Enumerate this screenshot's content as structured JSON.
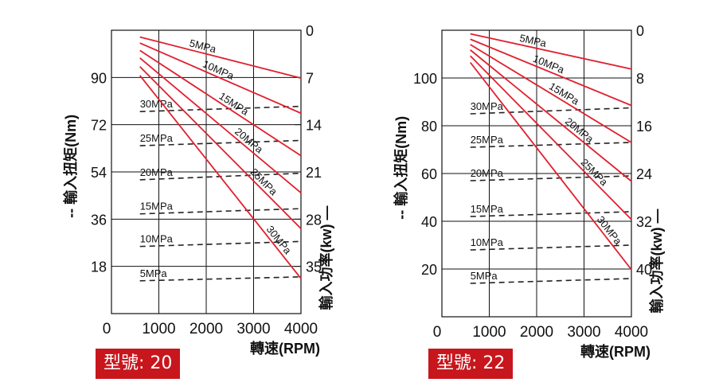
{
  "colors": {
    "power": "#e0202e",
    "torque": "#222222",
    "grid": "#111111",
    "badge": "#c8161d",
    "badge_text": "#ffffff"
  },
  "charts": [
    {
      "model_label": "型號",
      "model_value": "20",
      "xlabel": "轉速(RPM)",
      "ylabel_left": "-- 輸入扭矩(Nm)",
      "ylabel_right": "輸入功率(kw) —",
      "x_ticks": [
        "0",
        "1000",
        "2000",
        "3000",
        "4000"
      ],
      "left_ticks": [
        "90",
        "72",
        "54",
        "36",
        "18"
      ],
      "right_ticks": [
        "0",
        "7",
        "14",
        "21",
        "28",
        "35"
      ],
      "chart_data": {
        "type": "line",
        "x_range": [
          0,
          4000
        ],
        "torque_ylim": [
          0,
          108
        ],
        "power_ylim_inverted": [
          0,
          42
        ],
        "power_series": [
          {
            "name": "5MPa",
            "points": [
              [
                600,
                1
              ],
              [
                4000,
                7.1
              ]
            ]
          },
          {
            "name": "10MPa",
            "points": [
              [
                600,
                1.9
              ],
              [
                4000,
                12.3
              ]
            ]
          },
          {
            "name": "15MPa",
            "points": [
              [
                600,
                3
              ],
              [
                4000,
                18.6
              ]
            ]
          },
          {
            "name": "20MPa",
            "points": [
              [
                600,
                4.1
              ],
              [
                4000,
                24.1
              ]
            ]
          },
          {
            "name": "25MPa",
            "points": [
              [
                600,
                5.4
              ],
              [
                4000,
                29.4
              ]
            ]
          },
          {
            "name": "30MPa",
            "points": [
              [
                600,
                6.7
              ],
              [
                4000,
                36.8
              ]
            ]
          }
        ],
        "torque_series": [
          {
            "name": "30MPa",
            "points": [
              [
                600,
                77
              ],
              [
                4000,
                79
              ]
            ]
          },
          {
            "name": "25MPa",
            "points": [
              [
                600,
                64
              ],
              [
                4000,
                66
              ]
            ]
          },
          {
            "name": "20MPa",
            "points": [
              [
                600,
                51
              ],
              [
                4000,
                53.5
              ]
            ]
          },
          {
            "name": "15MPa",
            "points": [
              [
                600,
                38
              ],
              [
                4000,
                40
              ]
            ]
          },
          {
            "name": "10MPa",
            "points": [
              [
                600,
                25.6
              ],
              [
                4000,
                27.5
              ]
            ]
          },
          {
            "name": "5MPa",
            "points": [
              [
                600,
                12.5
              ],
              [
                4000,
                14
              ]
            ]
          }
        ]
      }
    },
    {
      "model_label": "型號",
      "model_value": "22",
      "xlabel": "轉速(RPM)",
      "ylabel_left": "-- 輸入扭矩(Nm)",
      "ylabel_right": "輸入功率(kw) —",
      "x_ticks": [
        "0",
        "1000",
        "2000",
        "3000",
        "4000"
      ],
      "left_ticks": [
        "100",
        "80",
        "60",
        "40",
        "20"
      ],
      "right_ticks": [
        "0",
        "8",
        "16",
        "24",
        "32",
        "40"
      ],
      "chart_data": {
        "type": "line",
        "x_range": [
          0,
          4000
        ],
        "torque_ylim": [
          0,
          120
        ],
        "power_ylim_inverted": [
          0,
          48
        ],
        "power_series": [
          {
            "name": "5MPa",
            "points": [
              [
                600,
                0.6
              ],
              [
                4000,
                6.5
              ]
            ]
          },
          {
            "name": "10MPa",
            "points": [
              [
                600,
                1.5
              ],
              [
                4000,
                12.6
              ]
            ]
          },
          {
            "name": "15MPa",
            "points": [
              [
                600,
                2.4
              ],
              [
                4000,
                18.8
              ]
            ]
          },
          {
            "name": "20MPa",
            "points": [
              [
                600,
                3.3
              ],
              [
                4000,
                25.3
              ]
            ]
          },
          {
            "name": "25MPa",
            "points": [
              [
                600,
                4.3
              ],
              [
                4000,
                31.7
              ]
            ]
          },
          {
            "name": "30MPa",
            "points": [
              [
                600,
                5.4
              ],
              [
                4000,
                40.1
              ]
            ]
          }
        ],
        "torque_series": [
          {
            "name": "30MPa",
            "points": [
              [
                600,
                85
              ],
              [
                4000,
                87.5
              ]
            ]
          },
          {
            "name": "25MPa",
            "points": [
              [
                600,
                71
              ],
              [
                4000,
                73
              ]
            ]
          },
          {
            "name": "20MPa",
            "points": [
              [
                600,
                57
              ],
              [
                4000,
                59
              ]
            ]
          },
          {
            "name": "15MPa",
            "points": [
              [
                600,
                42
              ],
              [
                4000,
                44
              ]
            ]
          },
          {
            "name": "10MPa",
            "points": [
              [
                600,
                28
              ],
              [
                4000,
                30
              ]
            ]
          },
          {
            "name": "5MPa",
            "points": [
              [
                600,
                14
              ],
              [
                4000,
                16
              ]
            ]
          }
        ]
      }
    }
  ]
}
